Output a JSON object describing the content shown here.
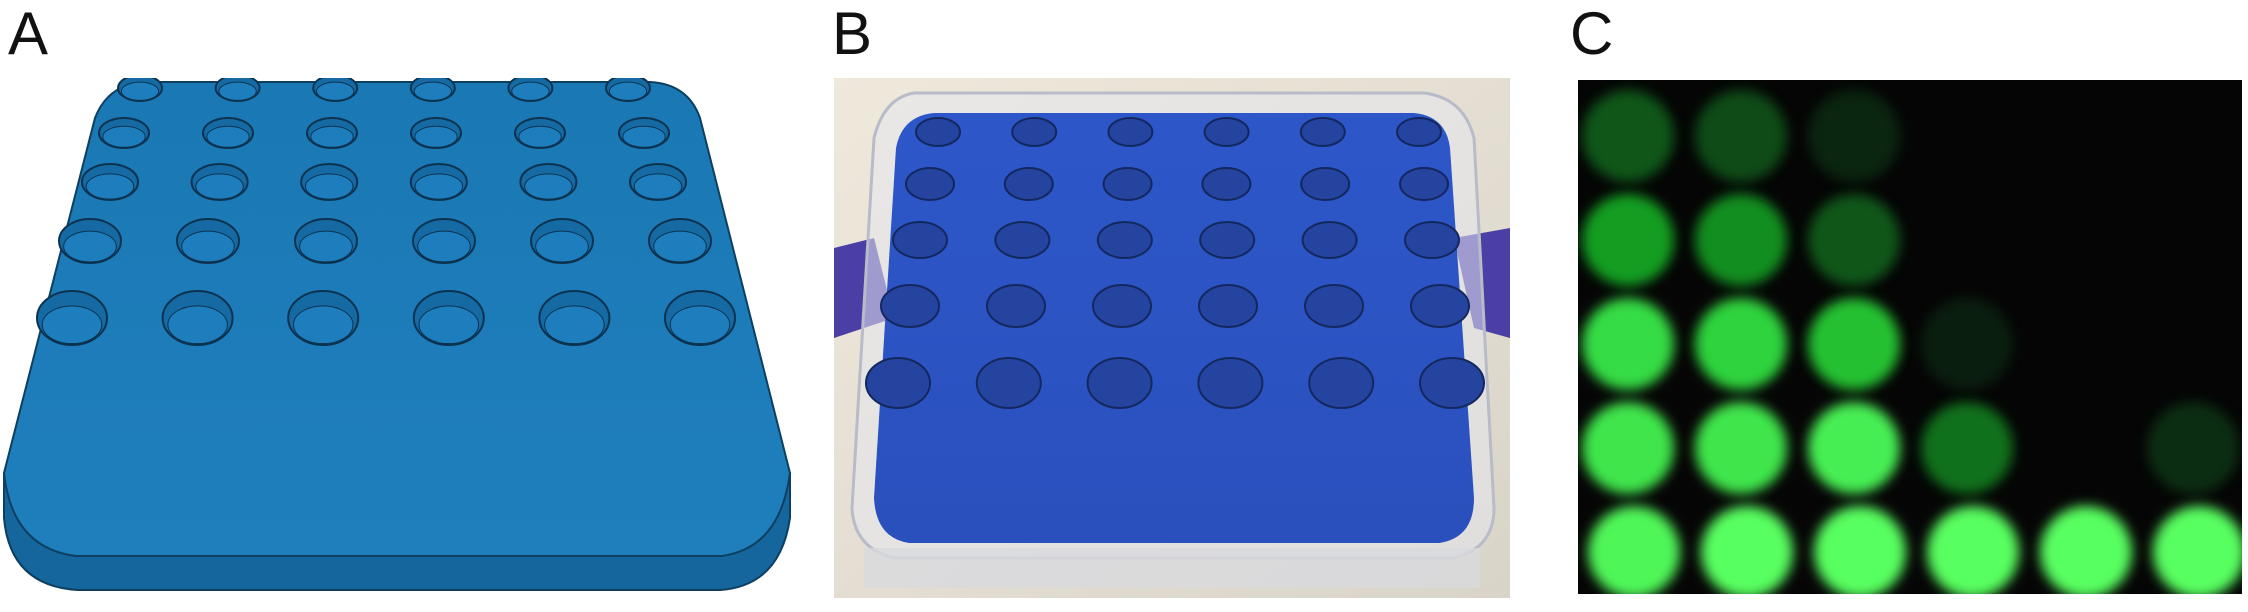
{
  "panels": [
    {
      "letter": "A",
      "subject": "3d-render-well-plate",
      "color": "#1f78b4"
    },
    {
      "letter": "B",
      "subject": "photo-printed-plate-in-petri-dish",
      "color": "#2a56c6"
    },
    {
      "letter": "C",
      "subject": "fluorescence-image-wells",
      "color": "#33ff7a"
    }
  ],
  "plate": {
    "rows": 5,
    "cols": 6
  },
  "fluorescence": {
    "intensity_by_row": [
      [
        0.35,
        0.3,
        0.1,
        0,
        0,
        0
      ],
      [
        0.6,
        0.55,
        0.35,
        0,
        0,
        0
      ],
      [
        0.8,
        0.75,
        0.7,
        0.05,
        0,
        0
      ],
      [
        0.85,
        0.85,
        0.9,
        0.45,
        0,
        0.15
      ],
      [
        0.95,
        1.0,
        1.0,
        1.0,
        1.0,
        1.0
      ]
    ]
  }
}
